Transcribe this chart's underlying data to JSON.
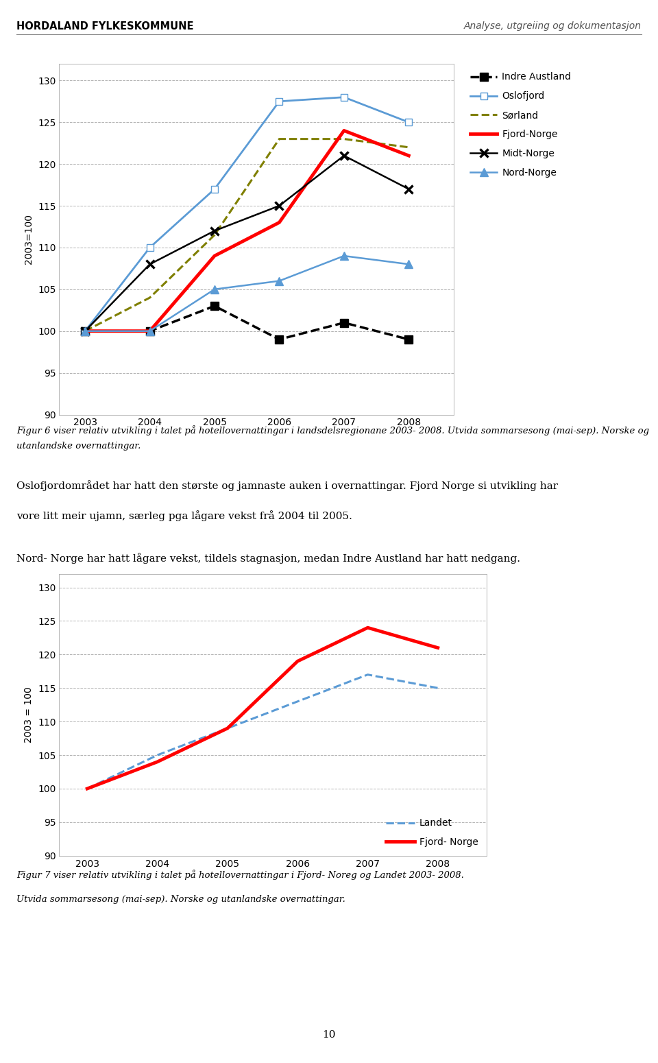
{
  "header_left": "HORDALAND FYLKESKOMMUNE",
  "header_right": "Analyse, utgreiing og dokumentasjon",
  "years": [
    2003,
    2004,
    2005,
    2006,
    2007,
    2008
  ],
  "chart1": {
    "ylabel": "2003=100",
    "ylim": [
      90,
      132
    ],
    "yticks": [
      90,
      95,
      100,
      105,
      110,
      115,
      120,
      125,
      130
    ],
    "series": {
      "Indre Austland": {
        "values": [
          100,
          100,
          103,
          99,
          101,
          99
        ],
        "color": "#000000",
        "linestyle": "--",
        "marker": "s",
        "linewidth": 2.5,
        "markersize": 8,
        "markerfacecolor": "#000000",
        "markeredgecolor": "#000000"
      },
      "Oslofjord": {
        "values": [
          100,
          110,
          117,
          127.5,
          128,
          125
        ],
        "color": "#5B9BD5",
        "linestyle": "-",
        "marker": "s",
        "linewidth": 2,
        "markersize": 7,
        "markerfacecolor": "white",
        "markeredgecolor": "#5B9BD5"
      },
      "Sørland": {
        "values": [
          100,
          104,
          111.5,
          123,
          123,
          122
        ],
        "color": "#7F7F00",
        "linestyle": "--",
        "marker": "None",
        "linewidth": 2.2,
        "markersize": 0
      },
      "Fjord-Norge": {
        "values": [
          100,
          100,
          109,
          113,
          124,
          121
        ],
        "color": "#FF0000",
        "linestyle": "-",
        "marker": "None",
        "linewidth": 3.5,
        "markersize": 0
      },
      "Midt-Norge": {
        "values": [
          100,
          108,
          112,
          115,
          121,
          117
        ],
        "color": "#000000",
        "linestyle": "-",
        "marker": "x",
        "linewidth": 1.8,
        "markersize": 9,
        "markeredgewidth": 2.5,
        "markerfacecolor": "none",
        "markeredgecolor": "#000000"
      },
      "Nord-Norge": {
        "values": [
          100,
          100,
          105,
          106,
          109,
          108
        ],
        "color": "#5B9BD5",
        "linestyle": "-",
        "marker": "^",
        "linewidth": 1.8,
        "markersize": 8,
        "markerfacecolor": "#5B9BD5",
        "markeredgecolor": "#5B9BD5"
      }
    }
  },
  "chart2": {
    "ylabel": "2003 = 100",
    "ylim": [
      90,
      132
    ],
    "yticks": [
      90,
      95,
      100,
      105,
      110,
      115,
      120,
      125,
      130
    ],
    "series": {
      "Landet": {
        "values": [
          100,
          105,
          109,
          113,
          117,
          115
        ],
        "color": "#5B9BD5",
        "linestyle": "--",
        "linewidth": 2.2
      },
      "Fjord- Norge": {
        "values": [
          100,
          104,
          109,
          119,
          124,
          121
        ],
        "color": "#FF0000",
        "linestyle": "-",
        "linewidth": 3.5
      }
    }
  },
  "caption1": "Figur 6 viser relativ utvikling i talet på hotellovernattingar i landsdelsregionane 2003- 2008. Utvida sommarsesong (mai-sep). Norske og utanlandske overnattingar.",
  "body_text1_line1": "Oslofjordområdet har hatt den største og jamnaste auken i overnattingar. Fjord Norge si utvikling har",
  "body_text1_line2": "vore litt meir ujamn, særleg pga lågare vekst frå 2004 til 2005.",
  "body_text2": "Nord- Norge har hatt lågare vekst, tildels stagnasjon, medan Indre Austland har hatt nedgang.",
  "caption2_line1": "Figur 7 viser relativ utvikling i talet på hotellovernattingar i Fjord- Noreg og Landet 2003- 2008.",
  "caption2_line2": "Utvida sommarsesong (mai-sep). Norske og utanlandske overnattingar.",
  "page_number": "10",
  "background_color": "#ffffff"
}
